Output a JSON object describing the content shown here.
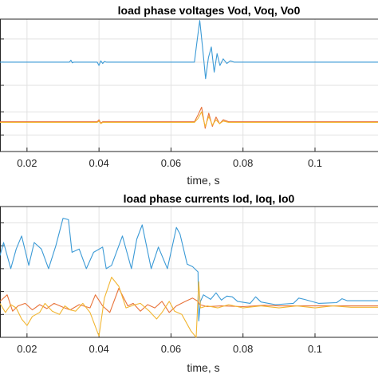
{
  "colors": {
    "series1": "#3b9ad6",
    "series2": "#e8733a",
    "series3": "#f2b632",
    "grid": "#e2e2e2",
    "axis": "#262626"
  },
  "chart_data": [
    {
      "type": "line",
      "title": "load phase voltages Vod, Voq, Vo0",
      "xlabel": "time, s",
      "ylabel": "",
      "xlim": [
        0.0125,
        0.1175
      ],
      "xticks": [
        0.02,
        0.04,
        0.06,
        0.08,
        0.1
      ],
      "xtick_labels": [
        "0.02",
        "0.04",
        "0.06",
        "0.08",
        "0.1"
      ],
      "ylim": [
        -1.0,
        1.0
      ],
      "grid": true,
      "series": [
        {
          "x": [
            0.0125,
            0.031,
            0.0318,
            0.0322,
            0.0326,
            0.033,
            0.0395,
            0.04,
            0.0405,
            0.041,
            0.0415,
            0.042,
            0.0665,
            0.0672,
            0.068,
            0.0688,
            0.0696,
            0.0704,
            0.0712,
            0.072,
            0.0728,
            0.0736,
            0.0745,
            0.0755,
            0.0765,
            0.0775,
            0.079,
            0.1175
          ],
          "values": [
            0.35,
            0.35,
            0.35,
            0.38,
            0.34,
            0.35,
            0.35,
            0.3,
            0.37,
            0.33,
            0.36,
            0.35,
            0.35,
            0.65,
            0.98,
            0.55,
            0.1,
            0.42,
            0.58,
            0.2,
            0.48,
            0.3,
            0.4,
            0.33,
            0.37,
            0.35,
            0.35,
            0.35
          ]
        },
        {
          "x": [
            0.0125,
            0.0395,
            0.04,
            0.0405,
            0.041,
            0.0665,
            0.0675,
            0.0685,
            0.0695,
            0.0705,
            0.0715,
            0.0725,
            0.0735,
            0.0745,
            0.076,
            0.1175
          ],
          "values": [
            -0.55,
            -0.55,
            -0.52,
            -0.57,
            -0.55,
            -0.55,
            -0.45,
            -0.33,
            -0.65,
            -0.42,
            -0.62,
            -0.48,
            -0.58,
            -0.52,
            -0.55,
            -0.55
          ]
        },
        {
          "x": [
            0.0125,
            0.0395,
            0.04,
            0.0405,
            0.041,
            0.0665,
            0.0675,
            0.0685,
            0.0695,
            0.0705,
            0.0715,
            0.0725,
            0.0735,
            0.0745,
            0.076,
            0.1175
          ],
          "values": [
            -0.56,
            -0.56,
            -0.54,
            -0.58,
            -0.56,
            -0.56,
            -0.5,
            -0.4,
            -0.62,
            -0.47,
            -0.6,
            -0.52,
            -0.58,
            -0.54,
            -0.56,
            -0.56
          ]
        }
      ]
    },
    {
      "type": "line",
      "title": "load phase currents Iod, Ioq, Io0",
      "xlabel": "time, s",
      "ylabel": "",
      "xlim": [
        0.0125,
        0.1175
      ],
      "xticks": [
        0.02,
        0.04,
        0.06,
        0.08,
        0.1
      ],
      "xtick_labels": [
        "0.02",
        "0.04",
        "0.06",
        "0.08",
        "0.1"
      ],
      "ylim": [
        -1.0,
        1.0
      ],
      "grid": true,
      "series": [
        {
          "x": [
            0.0125,
            0.0135,
            0.0155,
            0.017,
            0.0185,
            0.0205,
            0.022,
            0.024,
            0.026,
            0.028,
            0.03,
            0.0315,
            0.0325,
            0.0345,
            0.0365,
            0.0385,
            0.041,
            0.042,
            0.0435,
            0.0465,
            0.049,
            0.0505,
            0.052,
            0.0545,
            0.0565,
            0.059,
            0.0615,
            0.0625,
            0.0645,
            0.066,
            0.0675,
            0.0677,
            0.0682,
            0.069,
            0.071,
            0.0725,
            0.074,
            0.0755,
            0.077,
            0.0785,
            0.082,
            0.0835,
            0.085,
            0.089,
            0.094,
            0.0955,
            0.097,
            0.101,
            0.106,
            0.1075,
            0.109,
            0.1175
          ],
          "values": [
            0.25,
            0.45,
            0.05,
            0.35,
            0.55,
            0.1,
            0.45,
            0.35,
            0.05,
            0.4,
            0.82,
            0.8,
            0.3,
            0.35,
            0.05,
            0.3,
            0.38,
            0.05,
            0.1,
            0.55,
            0.05,
            0.5,
            0.72,
            0.05,
            0.38,
            0.05,
            0.68,
            0.58,
            0.12,
            0.08,
            0.0,
            -0.75,
            -0.45,
            -0.35,
            -0.42,
            -0.32,
            -0.43,
            -0.37,
            -0.38,
            -0.45,
            -0.48,
            -0.38,
            -0.46,
            -0.5,
            -0.48,
            -0.4,
            -0.42,
            -0.48,
            -0.47,
            -0.41,
            -0.44,
            -0.44
          ]
        },
        {
          "x": [
            0.0125,
            0.0145,
            0.016,
            0.0175,
            0.0195,
            0.0215,
            0.0235,
            0.0255,
            0.0275,
            0.03,
            0.032,
            0.0345,
            0.0375,
            0.039,
            0.041,
            0.043,
            0.0455,
            0.048,
            0.0495,
            0.0515,
            0.0535,
            0.0555,
            0.0575,
            0.0595,
            0.0615,
            0.064,
            0.066,
            0.0675,
            0.068,
            0.07,
            0.074,
            0.08,
            0.086,
            0.09,
            0.095,
            0.1,
            0.105,
            0.11,
            0.1175
          ],
          "values": [
            -0.45,
            -0.35,
            -0.6,
            -0.52,
            -0.48,
            -0.58,
            -0.5,
            -0.56,
            -0.48,
            -0.54,
            -0.58,
            -0.5,
            -0.55,
            -0.35,
            -0.52,
            -0.62,
            -0.25,
            -0.52,
            -0.48,
            -0.6,
            -0.5,
            -0.55,
            -0.45,
            -0.62,
            -0.52,
            -0.45,
            -0.4,
            -0.45,
            -0.5,
            -0.53,
            -0.52,
            -0.53,
            -0.51,
            -0.52,
            -0.52,
            -0.52,
            -0.52,
            -0.52,
            -0.52
          ]
        },
        {
          "x": [
            0.0125,
            0.014,
            0.0155,
            0.017,
            0.0185,
            0.02,
            0.0215,
            0.0235,
            0.025,
            0.027,
            0.029,
            0.0305,
            0.032,
            0.0335,
            0.0355,
            0.0375,
            0.04,
            0.0415,
            0.0435,
            0.0455,
            0.0475,
            0.05,
            0.0515,
            0.054,
            0.056,
            0.0575,
            0.0595,
            0.061,
            0.063,
            0.0655,
            0.067,
            0.0677,
            0.0682,
            0.07,
            0.073,
            0.076,
            0.08,
            0.085,
            0.09,
            0.095,
            0.1,
            0.105,
            0.11,
            0.1175
          ],
          "values": [
            -0.48,
            -0.62,
            -0.5,
            -0.55,
            -0.72,
            -0.82,
            -0.68,
            -0.62,
            -0.48,
            -0.6,
            -0.65,
            -0.52,
            -0.58,
            -0.6,
            -0.48,
            -0.62,
            -0.98,
            -0.4,
            -0.08,
            -0.22,
            -0.55,
            -0.5,
            -0.48,
            -0.6,
            -0.72,
            -0.62,
            -0.45,
            -0.6,
            -0.65,
            -0.9,
            -1.0,
            -0.15,
            -0.55,
            -0.52,
            -0.55,
            -0.5,
            -0.55,
            -0.52,
            -0.55,
            -0.52,
            -0.55,
            -0.52,
            -0.54,
            -0.54
          ]
        }
      ]
    }
  ]
}
